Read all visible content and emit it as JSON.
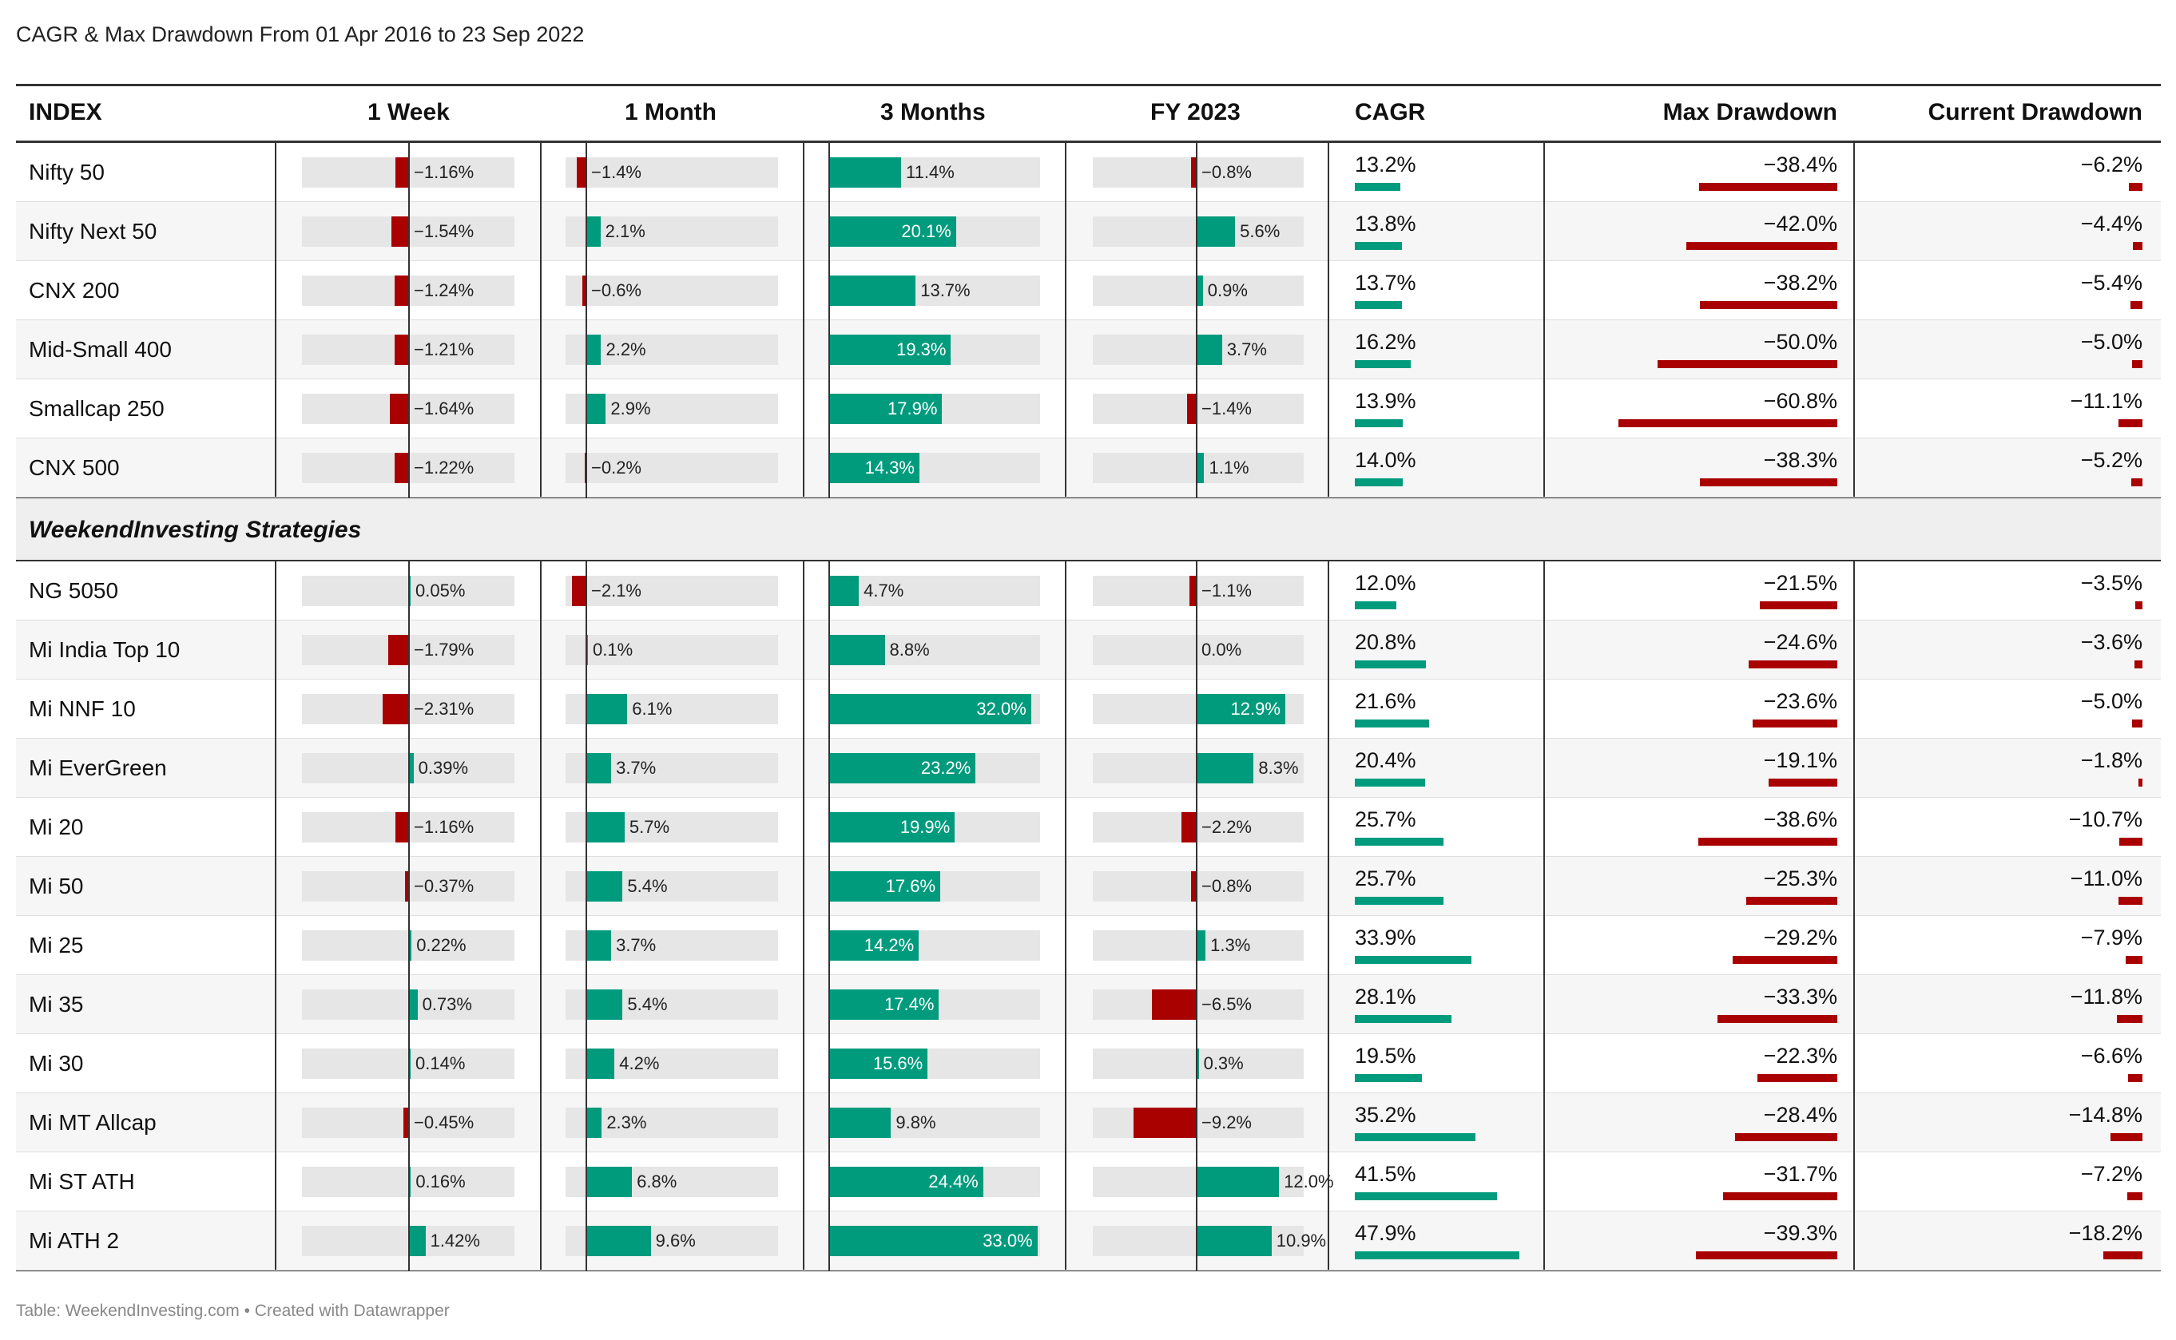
{
  "title": "CAGR & Max Drawdown From 01 Apr 2016 to 23 Sep 2022",
  "footer": "Table: WeekendInvesting.com • Created with Datawrapper",
  "colors": {
    "positive": "#009b7d",
    "negative": "#a90000",
    "track": "#e6e6e6"
  },
  "chart_data": {
    "type": "table",
    "columns": [
      "INDEX",
      "1 Week",
      "1 Month",
      "3 Months",
      "FY 2023",
      "CAGR",
      "Max Drawdown",
      "Current Drawdown"
    ],
    "group_label": "WeekendInvesting Strategies",
    "rows": [
      {
        "name": "Nifty 50",
        "week": -1.16,
        "week_label": "−1.16%",
        "month": -1.4,
        "month_label": "−1.4%",
        "m3": 11.4,
        "m3_label": "11.4%",
        "fy": -0.8,
        "fy_label": "−0.8%",
        "cagr": 13.2,
        "cagr_label": "13.2%",
        "maxdd": -38.4,
        "maxdd_label": "−38.4%",
        "curdd": -6.2,
        "curdd_label": "−6.2%"
      },
      {
        "name": "Nifty Next 50",
        "week": -1.54,
        "week_label": "−1.54%",
        "month": 2.1,
        "month_label": "2.1%",
        "m3": 20.1,
        "m3_label": "20.1%",
        "fy": 5.6,
        "fy_label": "5.6%",
        "cagr": 13.8,
        "cagr_label": "13.8%",
        "maxdd": -42.0,
        "maxdd_label": "−42.0%",
        "curdd": -4.4,
        "curdd_label": "−4.4%"
      },
      {
        "name": "CNX 200",
        "week": -1.24,
        "week_label": "−1.24%",
        "month": -0.6,
        "month_label": "−0.6%",
        "m3": 13.7,
        "m3_label": "13.7%",
        "fy": 0.9,
        "fy_label": "0.9%",
        "cagr": 13.7,
        "cagr_label": "13.7%",
        "maxdd": -38.2,
        "maxdd_label": "−38.2%",
        "curdd": -5.4,
        "curdd_label": "−5.4%"
      },
      {
        "name": "Mid-Small 400",
        "week": -1.21,
        "week_label": "−1.21%",
        "month": 2.2,
        "month_label": "2.2%",
        "m3": 19.3,
        "m3_label": "19.3%",
        "fy": 3.7,
        "fy_label": "3.7%",
        "cagr": 16.2,
        "cagr_label": "16.2%",
        "maxdd": -50.0,
        "maxdd_label": "−50.0%",
        "curdd": -5.0,
        "curdd_label": "−5.0%"
      },
      {
        "name": "Smallcap 250",
        "week": -1.64,
        "week_label": "−1.64%",
        "month": 2.9,
        "month_label": "2.9%",
        "m3": 17.9,
        "m3_label": "17.9%",
        "fy": -1.4,
        "fy_label": "−1.4%",
        "cagr": 13.9,
        "cagr_label": "13.9%",
        "maxdd": -60.8,
        "maxdd_label": "−60.8%",
        "curdd": -11.1,
        "curdd_label": "−11.1%"
      },
      {
        "name": "CNX 500",
        "week": -1.22,
        "week_label": "−1.22%",
        "month": -0.2,
        "month_label": "−0.2%",
        "m3": 14.3,
        "m3_label": "14.3%",
        "fy": 1.1,
        "fy_label": "1.1%",
        "cagr": 14.0,
        "cagr_label": "14.0%",
        "maxdd": -38.3,
        "maxdd_label": "−38.3%",
        "curdd": -5.2,
        "curdd_label": "−5.2%"
      },
      {
        "name": "NG 5050",
        "week": 0.05,
        "week_label": "0.05%",
        "month": -2.1,
        "month_label": "−2.1%",
        "m3": 4.7,
        "m3_label": "4.7%",
        "fy": -1.1,
        "fy_label": "−1.1%",
        "cagr": 12.0,
        "cagr_label": "12.0%",
        "maxdd": -21.5,
        "maxdd_label": "−21.5%",
        "curdd": -3.5,
        "curdd_label": "−3.5%"
      },
      {
        "name": "Mi India Top 10",
        "week": -1.79,
        "week_label": "−1.79%",
        "month": 0.1,
        "month_label": "0.1%",
        "m3": 8.8,
        "m3_label": "8.8%",
        "fy": 0.0,
        "fy_label": "0.0%",
        "cagr": 20.8,
        "cagr_label": "20.8%",
        "maxdd": -24.6,
        "maxdd_label": "−24.6%",
        "curdd": -3.6,
        "curdd_label": "−3.6%"
      },
      {
        "name": "Mi NNF 10",
        "week": -2.31,
        "week_label": "−2.31%",
        "month": 6.1,
        "month_label": "6.1%",
        "m3": 32.0,
        "m3_label": "32.0%",
        "fy": 12.9,
        "fy_label": "12.9%",
        "cagr": 21.6,
        "cagr_label": "21.6%",
        "maxdd": -23.6,
        "maxdd_label": "−23.6%",
        "curdd": -5.0,
        "curdd_label": "−5.0%"
      },
      {
        "name": "Mi EverGreen",
        "week": 0.39,
        "week_label": "0.39%",
        "month": 3.7,
        "month_label": "3.7%",
        "m3": 23.2,
        "m3_label": "23.2%",
        "fy": 8.3,
        "fy_label": "8.3%",
        "cagr": 20.4,
        "cagr_label": "20.4%",
        "maxdd": -19.1,
        "maxdd_label": "−19.1%",
        "curdd": -1.8,
        "curdd_label": "−1.8%"
      },
      {
        "name": "Mi 20",
        "week": -1.16,
        "week_label": "−1.16%",
        "month": 5.7,
        "month_label": "5.7%",
        "m3": 19.9,
        "m3_label": "19.9%",
        "fy": -2.2,
        "fy_label": "−2.2%",
        "cagr": 25.7,
        "cagr_label": "25.7%",
        "maxdd": -38.6,
        "maxdd_label": "−38.6%",
        "curdd": -10.7,
        "curdd_label": "−10.7%"
      },
      {
        "name": "Mi 50",
        "week": -0.37,
        "week_label": "−0.37%",
        "month": 5.4,
        "month_label": "5.4%",
        "m3": 17.6,
        "m3_label": "17.6%",
        "fy": -0.8,
        "fy_label": "−0.8%",
        "cagr": 25.7,
        "cagr_label": "25.7%",
        "maxdd": -25.3,
        "maxdd_label": "−25.3%",
        "curdd": -11.0,
        "curdd_label": "−11.0%"
      },
      {
        "name": "Mi 25",
        "week": 0.22,
        "week_label": "0.22%",
        "month": 3.7,
        "month_label": "3.7%",
        "m3": 14.2,
        "m3_label": "14.2%",
        "fy": 1.3,
        "fy_label": "1.3%",
        "cagr": 33.9,
        "cagr_label": "33.9%",
        "maxdd": -29.2,
        "maxdd_label": "−29.2%",
        "curdd": -7.9,
        "curdd_label": "−7.9%"
      },
      {
        "name": "Mi 35",
        "week": 0.73,
        "week_label": "0.73%",
        "month": 5.4,
        "month_label": "5.4%",
        "m3": 17.4,
        "m3_label": "17.4%",
        "fy": -6.5,
        "fy_label": "−6.5%",
        "cagr": 28.1,
        "cagr_label": "28.1%",
        "maxdd": -33.3,
        "maxdd_label": "−33.3%",
        "curdd": -11.8,
        "curdd_label": "−11.8%"
      },
      {
        "name": "Mi 30",
        "week": 0.14,
        "week_label": "0.14%",
        "month": 4.2,
        "month_label": "4.2%",
        "m3": 15.6,
        "m3_label": "15.6%",
        "fy": 0.3,
        "fy_label": "0.3%",
        "cagr": 19.5,
        "cagr_label": "19.5%",
        "maxdd": -22.3,
        "maxdd_label": "−22.3%",
        "curdd": -6.6,
        "curdd_label": "−6.6%"
      },
      {
        "name": "Mi MT Allcap",
        "week": -0.45,
        "week_label": "−0.45%",
        "month": 2.3,
        "month_label": "2.3%",
        "m3": 9.8,
        "m3_label": "9.8%",
        "fy": -9.2,
        "fy_label": "−9.2%",
        "cagr": 35.2,
        "cagr_label": "35.2%",
        "maxdd": -28.4,
        "maxdd_label": "−28.4%",
        "curdd": -14.8,
        "curdd_label": "−14.8%"
      },
      {
        "name": "Mi ST ATH",
        "week": 0.16,
        "week_label": "0.16%",
        "month": 6.8,
        "month_label": "6.8%",
        "m3": 24.4,
        "m3_label": "24.4%",
        "fy": 12.0,
        "fy_label": "12.0%",
        "cagr": 41.5,
        "cagr_label": "41.5%",
        "maxdd": -31.7,
        "maxdd_label": "−31.7%",
        "curdd": -7.2,
        "curdd_label": "−7.2%"
      },
      {
        "name": "Mi ATH 2",
        "week": 1.42,
        "week_label": "1.42%",
        "month": 9.6,
        "month_label": "9.6%",
        "m3": 33.0,
        "m3_label": "33.0%",
        "fy": 10.9,
        "fy_label": "10.9%",
        "cagr": 47.9,
        "cagr_label": "47.9%",
        "maxdd": -39.3,
        "maxdd_label": "−39.3%",
        "curdd": -18.2,
        "curdd_label": "−18.2%"
      }
    ]
  }
}
